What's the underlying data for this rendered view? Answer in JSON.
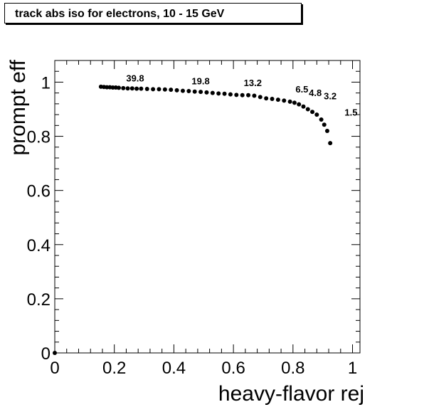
{
  "chart_data": {
    "type": "scatter",
    "title": "track abs iso for electrons, 10 - 15 GeV",
    "xlabel": "heavy-flavor rej",
    "ylabel": "prompt eff",
    "xlim": [
      0,
      1.025
    ],
    "ylim": [
      0,
      1.08
    ],
    "xticks": [
      0,
      0.2,
      0.4,
      0.6,
      0.8,
      1
    ],
    "xtick_labels": [
      "0",
      "0.2",
      "0.4",
      "0.6",
      "0.8",
      "1"
    ],
    "yticks": [
      0,
      0.2,
      0.4,
      0.6,
      0.8,
      1
    ],
    "ytick_labels": [
      "0",
      "0.2",
      "0.4",
      "0.6",
      "0.8",
      "1"
    ],
    "grid": false,
    "series": [
      {
        "x": [
          0.0,
          0.155,
          0.165,
          0.175,
          0.185,
          0.195,
          0.205,
          0.215,
          0.23,
          0.245,
          0.26,
          0.275,
          0.29,
          0.31,
          0.33,
          0.35,
          0.37,
          0.39,
          0.41,
          0.43,
          0.45,
          0.47,
          0.49,
          0.51,
          0.53,
          0.55,
          0.57,
          0.59,
          0.61,
          0.63,
          0.65,
          0.67,
          0.69,
          0.71,
          0.73,
          0.75,
          0.77,
          0.79,
          0.805,
          0.82,
          0.835,
          0.85,
          0.865,
          0.88,
          0.895,
          0.905,
          0.915,
          0.925
        ],
        "y": [
          0.0,
          0.983,
          0.982,
          0.981,
          0.981,
          0.98,
          0.98,
          0.979,
          0.978,
          0.977,
          0.977,
          0.976,
          0.976,
          0.975,
          0.974,
          0.974,
          0.973,
          0.972,
          0.97,
          0.968,
          0.967,
          0.965,
          0.964,
          0.962,
          0.96,
          0.958,
          0.957,
          0.955,
          0.953,
          0.952,
          0.952,
          0.95,
          0.945,
          0.94,
          0.938,
          0.935,
          0.932,
          0.928,
          0.924,
          0.918,
          0.91,
          0.9,
          0.89,
          0.88,
          0.862,
          0.843,
          0.82,
          0.775
        ]
      }
    ],
    "annotations": [
      {
        "text": "39.8",
        "x": 0.27,
        "y": 1.003
      },
      {
        "text": "19.8",
        "x": 0.49,
        "y": 0.992
      },
      {
        "text": "13.2",
        "x": 0.665,
        "y": 0.985
      },
      {
        "text": "6.5",
        "x": 0.83,
        "y": 0.962
      },
      {
        "text": "4.8",
        "x": 0.875,
        "y": 0.948
      },
      {
        "text": "3.2",
        "x": 0.925,
        "y": 0.937
      },
      {
        "text": "1.5",
        "x": 0.995,
        "y": 0.877
      }
    ]
  }
}
